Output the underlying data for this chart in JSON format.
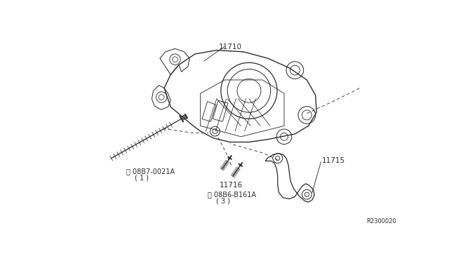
{
  "background_color": "#ffffff",
  "line_color": "#2a2a2a",
  "text_color": "#2a2a2a",
  "ref_code": "R2300020",
  "figsize": [
    6.4,
    3.72
  ],
  "dpi": 100,
  "label_11710": "11710",
  "label_11715": "11715",
  "label_11716": "11716",
  "label_bolt1_line1": "Ⓑ 08B7-0021A",
  "label_bolt1_line2": "( 1 )",
  "label_bolt2_line1": "Ⓑ 08B6-B161A",
  "label_bolt2_line2": "( 3 )"
}
